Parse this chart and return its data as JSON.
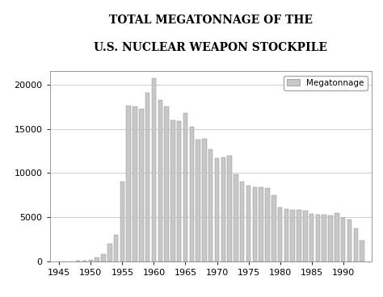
{
  "title_line1": "TOTAL MEGATONNAGE OF THE",
  "title_line2": "U.S. NUCLEAR WEAPON STOCKPILE",
  "legend_label": "Megatonnage",
  "bar_color": "#c8c8c8",
  "bar_edge_color": "#888888",
  "background_color": "#ffffff",
  "xlim": [
    1943.5,
    1994.5
  ],
  "ylim": [
    0,
    21500
  ],
  "yticks": [
    0,
    5000,
    10000,
    15000,
    20000
  ],
  "xticks": [
    1945,
    1950,
    1955,
    1960,
    1965,
    1970,
    1975,
    1980,
    1985,
    1990
  ],
  "years": [
    1945,
    1946,
    1947,
    1948,
    1949,
    1950,
    1951,
    1952,
    1953,
    1954,
    1955,
    1956,
    1957,
    1958,
    1959,
    1960,
    1961,
    1962,
    1963,
    1964,
    1965,
    1966,
    1967,
    1968,
    1969,
    1970,
    1971,
    1972,
    1973,
    1974,
    1975,
    1976,
    1977,
    1978,
    1979,
    1980,
    1981,
    1982,
    1983,
    1984,
    1985,
    1986,
    1987,
    1988,
    1989,
    1990,
    1991,
    1992,
    1993
  ],
  "values": [
    6,
    8,
    12,
    50,
    100,
    200,
    400,
    800,
    2000,
    3000,
    9000,
    17600,
    17500,
    17200,
    19100,
    20700,
    18200,
    17500,
    16000,
    15900,
    16800,
    15200,
    13800,
    13900,
    12700,
    11700,
    11800,
    11900,
    9800,
    9000,
    8600,
    8400,
    8400,
    8300,
    7500,
    6100,
    5900,
    5800,
    5800,
    5700,
    5400,
    5300,
    5300,
    5200,
    5500,
    4900,
    4700,
    3700,
    2400
  ],
  "title_fontsize": 10,
  "tick_fontsize": 8,
  "legend_fontsize": 7.5,
  "bar_width": 0.7
}
